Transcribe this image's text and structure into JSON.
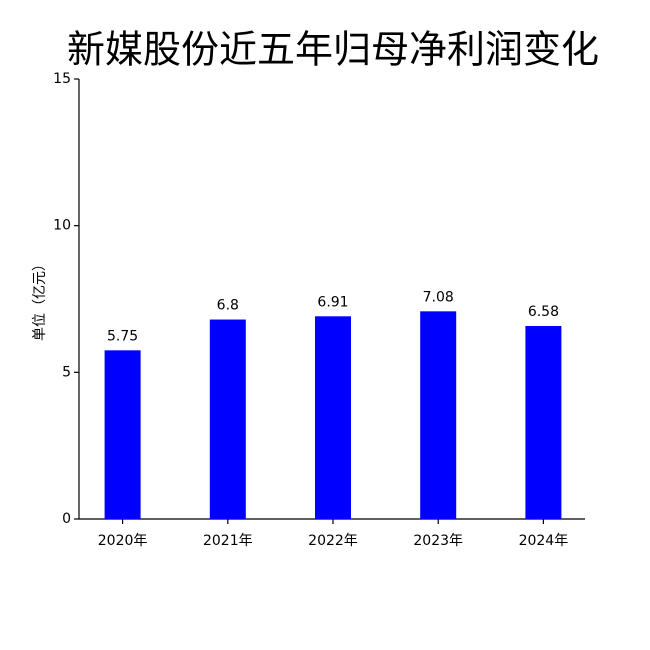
{
  "chart_data": {
    "type": "bar",
    "title": "新媒股份近五年归母净利润变化",
    "y_label": "单位（亿元）",
    "categories": [
      "2020年",
      "2021年",
      "2022年",
      "2023年",
      "2024年"
    ],
    "values": [
      5.75,
      6.8,
      6.91,
      7.08,
      6.58
    ],
    "color": "#0000ff",
    "ylim": [
      0,
      15
    ],
    "yticks": [
      0,
      5,
      10,
      15
    ],
    "grid": false
  }
}
